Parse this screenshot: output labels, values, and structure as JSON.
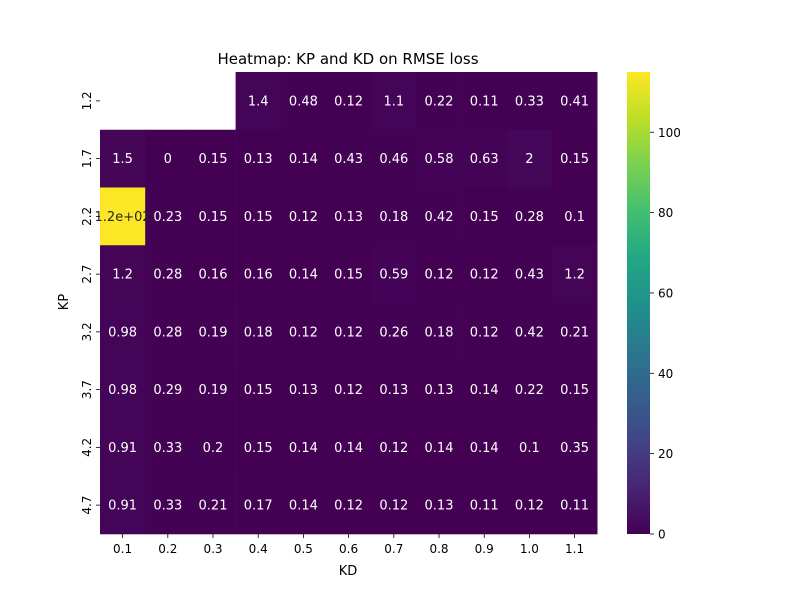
{
  "chart_data": {
    "type": "heatmap",
    "title": "Heatmap: KP and KD on RMSE loss",
    "xlabel": "KD",
    "ylabel": "KP",
    "x_categories": [
      "0.1",
      "0.2",
      "0.3",
      "0.4",
      "0.5",
      "0.6",
      "0.7",
      "0.8",
      "0.9",
      "1.0",
      "1.1"
    ],
    "y_categories": [
      "1.2",
      "1.7",
      "2.2",
      "2.7",
      "3.2",
      "3.7",
      "4.2",
      "4.7"
    ],
    "values": [
      [
        null,
        null,
        null,
        1.4,
        0.48,
        0.12,
        1.1,
        0.22,
        0.11,
        0.33,
        0.41
      ],
      [
        1.5,
        0,
        0.15,
        0.13,
        0.14,
        0.43,
        0.46,
        0.58,
        0.63,
        2,
        0.15
      ],
      [
        115,
        0.23,
        0.15,
        0.15,
        0.12,
        0.13,
        0.18,
        0.42,
        0.15,
        0.28,
        0.1
      ],
      [
        1.2,
        0.28,
        0.16,
        0.16,
        0.14,
        0.15,
        0.59,
        0.12,
        0.12,
        0.43,
        1.2
      ],
      [
        0.98,
        0.28,
        0.19,
        0.18,
        0.12,
        0.12,
        0.26,
        0.18,
        0.12,
        0.42,
        0.21
      ],
      [
        0.98,
        0.29,
        0.19,
        0.15,
        0.13,
        0.12,
        0.13,
        0.13,
        0.14,
        0.22,
        0.15
      ],
      [
        0.91,
        0.33,
        0.2,
        0.15,
        0.14,
        0.14,
        0.12,
        0.14,
        0.14,
        0.1,
        0.35
      ],
      [
        0.91,
        0.33,
        0.21,
        0.17,
        0.14,
        0.12,
        0.12,
        0.13,
        0.11,
        0.12,
        0.11
      ]
    ],
    "annotations": [
      [
        "",
        "",
        "",
        "1.4",
        "0.48",
        "0.12",
        "1.1",
        "0.22",
        "0.11",
        "0.33",
        "0.41"
      ],
      [
        "1.5",
        "0",
        "0.15",
        "0.13",
        "0.14",
        "0.43",
        "0.46",
        "0.58",
        "0.63",
        "2",
        "0.15"
      ],
      [
        "1.2e+02",
        "0.23",
        "0.15",
        "0.15",
        "0.12",
        "0.13",
        "0.18",
        "0.42",
        "0.15",
        "0.28",
        "0.1"
      ],
      [
        "1.2",
        "0.28",
        "0.16",
        "0.16",
        "0.14",
        "0.15",
        "0.59",
        "0.12",
        "0.12",
        "0.43",
        "1.2"
      ],
      [
        "0.98",
        "0.28",
        "0.19",
        "0.18",
        "0.12",
        "0.12",
        "0.26",
        "0.18",
        "0.12",
        "0.42",
        "0.21"
      ],
      [
        "0.98",
        "0.29",
        "0.19",
        "0.15",
        "0.13",
        "0.12",
        "0.13",
        "0.13",
        "0.14",
        "0.22",
        "0.15"
      ],
      [
        "0.91",
        "0.33",
        "0.2",
        "0.15",
        "0.14",
        "0.14",
        "0.12",
        "0.14",
        "0.14",
        "0.1",
        "0.35"
      ],
      [
        "0.91",
        "0.33",
        "0.21",
        "0.17",
        "0.14",
        "0.12",
        "0.12",
        "0.13",
        "0.11",
        "0.12",
        "0.11"
      ]
    ],
    "colorbar": {
      "colormap": "viridis",
      "range": [
        0,
        115
      ],
      "ticks": [
        "0",
        "20",
        "40",
        "60",
        "80",
        "100"
      ]
    },
    "grid": false
  }
}
